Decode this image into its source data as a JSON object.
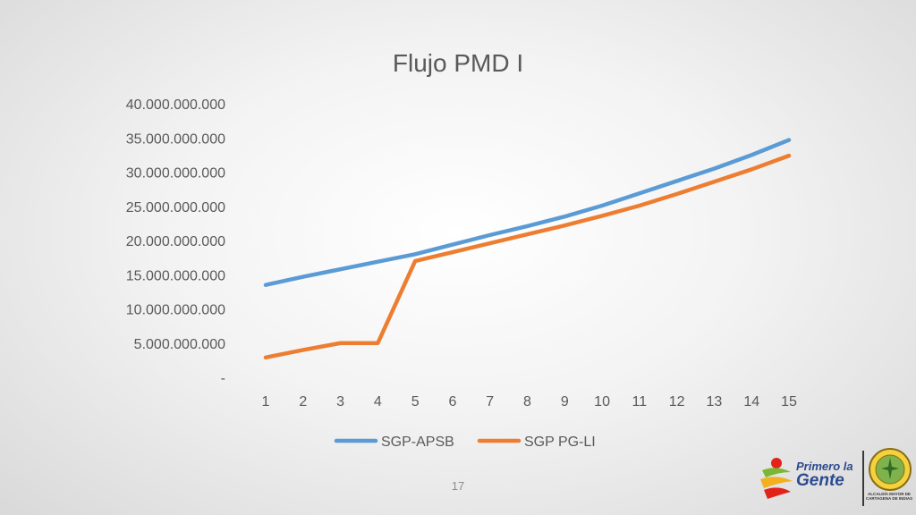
{
  "slide": {
    "page_number": "17"
  },
  "logo": {
    "line1": "Primero la",
    "line2": "Gente",
    "seal_caption": "ALCALDÍA MAYOR DE CARTAGENA DE INDIAS"
  },
  "chart_data": {
    "type": "line",
    "title": "Flujo PMD I",
    "xlabel": "",
    "ylabel": "",
    "x": [
      1,
      2,
      3,
      4,
      5,
      6,
      7,
      8,
      9,
      10,
      11,
      12,
      13,
      14,
      15
    ],
    "ylim": [
      0,
      40000000000
    ],
    "y_ticks": [
      0,
      5000000000,
      10000000000,
      15000000000,
      20000000000,
      25000000000,
      30000000000,
      35000000000,
      40000000000
    ],
    "y_tick_labels": [
      "-",
      "5.000.000.000",
      "10.000.000.000",
      "15.000.000.000",
      "20.000.000.000",
      "25.000.000.000",
      "30.000.000.000",
      "35.000.000.000",
      "40.000.000.000"
    ],
    "grid": false,
    "legend_position": "bottom",
    "series": [
      {
        "name": "SGP-APSB",
        "color": "#5b9bd5",
        "values": [
          13500000000,
          14700000000,
          15800000000,
          16900000000,
          18000000000,
          19400000000,
          20800000000,
          22100000000,
          23500000000,
          25100000000,
          26900000000,
          28700000000,
          30500000000,
          32500000000,
          34700000000
        ]
      },
      {
        "name": "SGP PG-LI",
        "color": "#ed7d31",
        "values": [
          2900000000,
          4000000000,
          5000000000,
          5000000000,
          17000000000,
          18300000000,
          19600000000,
          20900000000,
          22200000000,
          23600000000,
          25100000000,
          26800000000,
          28600000000,
          30400000000,
          32400000000
        ]
      }
    ]
  }
}
